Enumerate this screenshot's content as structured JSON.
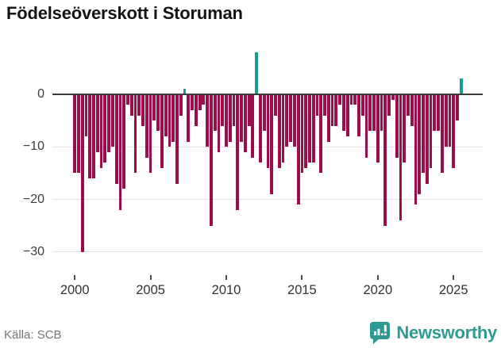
{
  "title": "Födelseöverskott i Storuman",
  "source": "Källa: SCB",
  "brand": {
    "name": "Newsworthy",
    "color": "#2f9a92"
  },
  "colors": {
    "negative_bar": "#9e0c49",
    "positive_bar": "#169b90",
    "zero_line": "#3d3d3d",
    "gridline": "#e4e4e4",
    "axis_text": "#3c3c3c",
    "source_text": "#757575"
  },
  "y_axis": {
    "tick_labels": [
      "0",
      "−10",
      "−20",
      "−30"
    ],
    "tick_values": [
      0,
      -10,
      -20,
      -30
    ]
  },
  "x_axis": {
    "tick_labels": [
      "2000",
      "2005",
      "2010",
      "2015",
      "2020",
      "2025"
    ],
    "tick_values": [
      2000,
      2005,
      2010,
      2015,
      2020,
      2025
    ]
  },
  "chart_data": {
    "type": "bar",
    "title": "Födelseöverskott i Storuman",
    "xlabel": "",
    "ylabel": "",
    "frequency": "quarterly",
    "start_period": "2000Q1",
    "end_period": "2025Q3",
    "ylim": [
      -33,
      8.5
    ],
    "grid": "horizontal",
    "legend": "none",
    "positive_color": "#169b90",
    "negative_color": "#9e0c49",
    "series": [
      {
        "name": "Födelseöverskott",
        "values": [
          -15,
          -15,
          -30,
          -8,
          -16,
          -16,
          -11,
          -14,
          -13,
          -11,
          -10,
          -17,
          -22,
          -18,
          -2,
          -4,
          -15,
          -4,
          -6,
          -12,
          -15,
          -5,
          -7,
          -14,
          -8,
          -10,
          -9,
          -17,
          -4,
          1,
          -9,
          -3,
          -6,
          -3,
          -2,
          -10,
          -25,
          -7,
          -11,
          -6,
          -10,
          -9,
          -6,
          -22,
          -9,
          -11,
          -6,
          -12,
          8,
          -13,
          -7,
          -14,
          -19,
          -4,
          -14,
          -13,
          -10,
          -9,
          -10,
          -21,
          -15,
          -14,
          -13,
          -13,
          -4,
          -15,
          -4,
          -9,
          -6,
          -6,
          -2,
          -7,
          -8,
          -2,
          -2,
          -8,
          -4,
          -12,
          -7,
          -7,
          -13,
          -7,
          -25,
          -4,
          -1,
          -12,
          -24,
          -13,
          -4,
          -6,
          -21,
          -19,
          -15,
          -17,
          -14,
          -7,
          -7,
          -15,
          -10,
          -10,
          -14,
          -5,
          3
        ]
      }
    ]
  }
}
